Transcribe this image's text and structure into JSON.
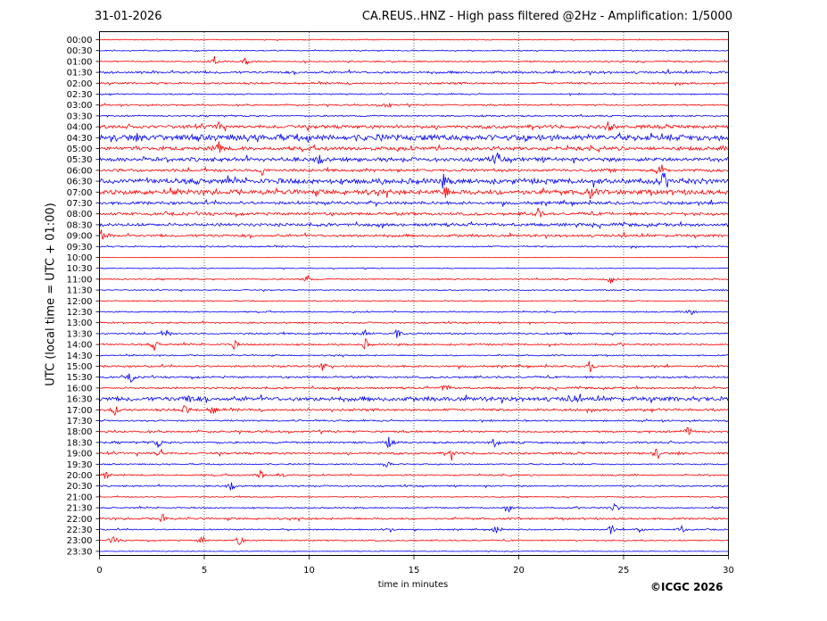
{
  "chart_data": {
    "type": "line",
    "date": "31-01-2026",
    "title": "CA.REUS..HNZ - High pass filtered @2Hz - Amplification: 1/5000",
    "xlabel": "time in minutes",
    "ylabel": "UTC (local time = UTC + 01:00)",
    "xlim": [
      0,
      30
    ],
    "xticks": [
      0,
      5,
      10,
      15,
      20,
      25,
      30
    ],
    "grid_vertical": true,
    "copyright": "©ICGC 2026",
    "trace_colors": [
      "#ff0000",
      "#0000ff"
    ],
    "rows": [
      "00:00",
      "00:30",
      "01:00",
      "01:30",
      "02:00",
      "02:30",
      "03:00",
      "03:30",
      "04:00",
      "04:30",
      "05:00",
      "05:30",
      "06:00",
      "06:30",
      "07:00",
      "07:30",
      "08:00",
      "08:30",
      "09:00",
      "09:30",
      "10:00",
      "10:30",
      "11:00",
      "11:30",
      "12:00",
      "12:30",
      "13:00",
      "13:30",
      "14:00",
      "14:30",
      "15:00",
      "15:30",
      "16:00",
      "16:30",
      "17:00",
      "17:30",
      "18:00",
      "18:30",
      "19:00",
      "19:30",
      "20:00",
      "20:30",
      "21:00",
      "21:30",
      "22:00",
      "22:30",
      "23:00",
      "23:30"
    ],
    "row_noise_level": [
      0.4,
      0.5,
      0.6,
      1.1,
      0.9,
      0.6,
      0.7,
      0.7,
      1.6,
      2.8,
      1.7,
      1.8,
      1.3,
      2.4,
      2.3,
      1.4,
      1.3,
      1.4,
      1.2,
      0.7,
      0.15,
      0.4,
      0.6,
      0.5,
      0.5,
      0.6,
      0.7,
      0.8,
      0.8,
      0.6,
      0.9,
      0.9,
      0.9,
      2.0,
      1.1,
      0.7,
      0.9,
      0.9,
      1.0,
      0.6,
      0.7,
      0.7,
      0.5,
      0.6,
      0.9,
      0.6,
      0.6,
      0.3
    ],
    "events": [
      {
        "row": "01:00",
        "minutes": [
          5.5,
          7.0
        ]
      },
      {
        "row": "03:00",
        "minutes": [
          13.7
        ]
      },
      {
        "row": "04:00",
        "minutes": [
          5.7,
          24.3
        ]
      },
      {
        "row": "05:00",
        "minutes": [
          5.7
        ]
      },
      {
        "row": "05:30",
        "minutes": [
          10.5,
          19.0
        ]
      },
      {
        "row": "06:00",
        "minutes": [
          7.8,
          26.8
        ]
      },
      {
        "row": "06:30",
        "minutes": [
          16.4,
          26.9
        ]
      },
      {
        "row": "07:00",
        "minutes": [
          16.5,
          23.4
        ]
      },
      {
        "row": "08:00",
        "minutes": [
          20.9
        ]
      },
      {
        "row": "09:00",
        "minutes": [
          0.1
        ]
      },
      {
        "row": "11:00",
        "minutes": [
          9.9,
          24.4
        ]
      },
      {
        "row": "12:30",
        "minutes": [
          28.2
        ]
      },
      {
        "row": "13:30",
        "minutes": [
          3.2,
          12.7,
          14.2
        ]
      },
      {
        "row": "14:00",
        "minutes": [
          2.6,
          6.4,
          12.7
        ]
      },
      {
        "row": "15:00",
        "minutes": [
          10.6,
          23.4
        ]
      },
      {
        "row": "15:30",
        "minutes": [
          1.5
        ]
      },
      {
        "row": "16:00",
        "minutes": [
          16.5
        ]
      },
      {
        "row": "16:30",
        "minutes": [
          4.2,
          22.5
        ]
      },
      {
        "row": "17:00",
        "minutes": [
          0.7,
          4.1,
          5.4
        ]
      },
      {
        "row": "18:00",
        "minutes": [
          28.1
        ]
      },
      {
        "row": "18:30",
        "minutes": [
          2.8,
          13.8,
          18.9
        ]
      },
      {
        "row": "19:00",
        "minutes": [
          2.9,
          16.8,
          26.6
        ]
      },
      {
        "row": "19:30",
        "minutes": [
          13.7
        ]
      },
      {
        "row": "20:00",
        "minutes": [
          0.3,
          7.7,
          8.6
        ]
      },
      {
        "row": "20:30",
        "minutes": [
          6.3
        ]
      },
      {
        "row": "21:30",
        "minutes": [
          19.5,
          24.6
        ]
      },
      {
        "row": "22:00",
        "minutes": [
          3.0
        ]
      },
      {
        "row": "22:30",
        "minutes": [
          13.8,
          18.9,
          24.4,
          25.8,
          27.8
        ]
      },
      {
        "row": "23:00",
        "minutes": [
          0.7,
          4.9,
          6.7
        ]
      }
    ]
  }
}
